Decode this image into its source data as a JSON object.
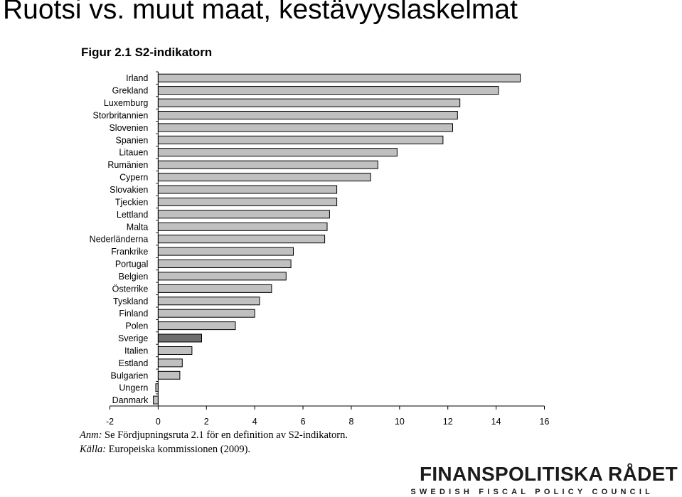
{
  "slide": {
    "title": "Ruotsi vs. muut maat, kestävyyslaskelmat"
  },
  "notes": {
    "anm_label": "Anm:",
    "anm_text": " Se Fördjupningsruta 2.1 för en definition av S2-indikatorn.",
    "kalla_label": "Källa:",
    "kalla_text": " Europeiska kommissionen (2009)."
  },
  "logo": {
    "name": "FINANSPOLITISKA RÅDET",
    "subtitle": "SWEDISH FISCAL POLICY COUNCIL"
  },
  "chart_data": {
    "type": "bar",
    "orientation": "horizontal",
    "title": "Figur 2.1 S2-indikatorn",
    "xlabel": "",
    "ylabel": "",
    "xlim": [
      -2,
      16
    ],
    "x_ticks": [
      -2,
      0,
      2,
      4,
      6,
      8,
      10,
      12,
      14,
      16
    ],
    "grid": false,
    "legend": "none",
    "categories": [
      "Irland",
      "Grekland",
      "Luxemburg",
      "Storbritannien",
      "Slovenien",
      "Spanien",
      "Litauen",
      "Rumänien",
      "Cypern",
      "Slovakien",
      "Tjeckien",
      "Lettland",
      "Malta",
      "Nederländerna",
      "Frankrike",
      "Portugal",
      "Belgien",
      "Österrike",
      "Tyskland",
      "Finland",
      "Polen",
      "Sverige",
      "Italien",
      "Estland",
      "Bulgarien",
      "Ungern",
      "Danmark"
    ],
    "values": [
      15.0,
      14.1,
      12.5,
      12.4,
      12.2,
      11.8,
      9.9,
      9.1,
      8.8,
      7.4,
      7.4,
      7.1,
      7.0,
      6.9,
      5.6,
      5.5,
      5.3,
      4.7,
      4.2,
      4.0,
      3.2,
      1.8,
      1.4,
      1.0,
      0.9,
      -0.1,
      -0.2
    ],
    "highlight": "Sverige",
    "colors": {
      "bar": "#c0c0c0",
      "highlight": "#6e6e6e",
      "outline": "#000000"
    }
  }
}
